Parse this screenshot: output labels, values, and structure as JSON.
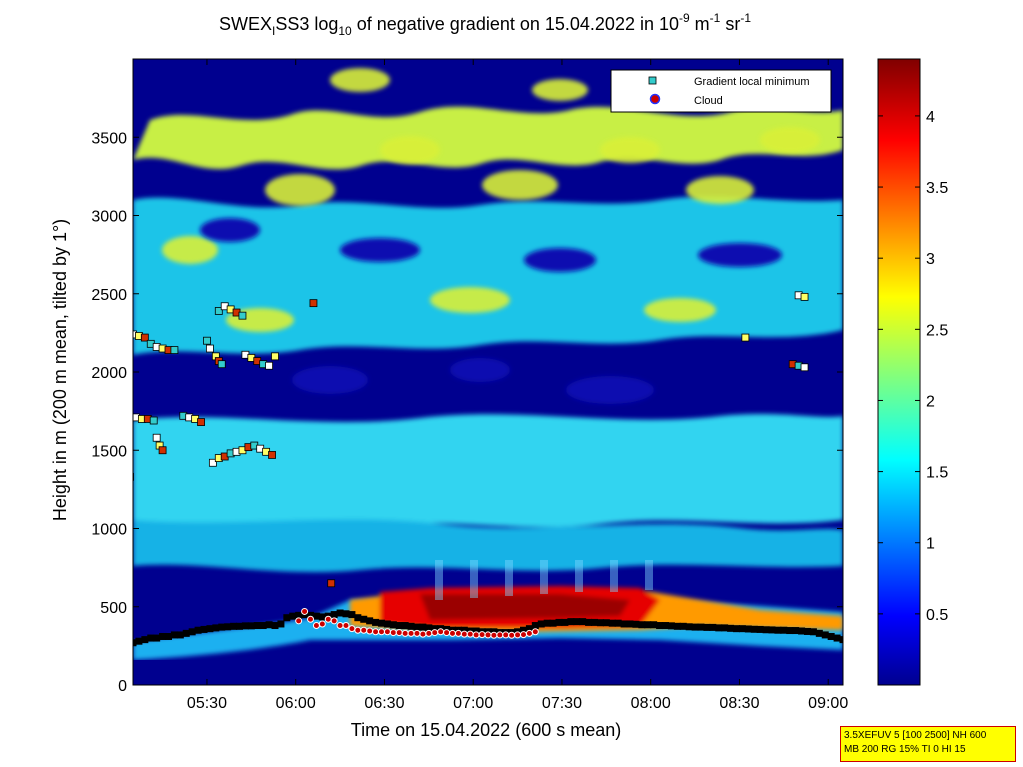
{
  "chart_data": {
    "type": "heatmap",
    "title": {
      "prefix": "SWEX",
      "sub1": "I",
      "mid1": "SS3 log",
      "sub2": "10",
      "mid2": " of negative gradient on 15.04.2022 in 10",
      "sup1": "-9",
      "mid3": " m",
      "sup2": "-1",
      "mid4": " sr",
      "sup3": "-1"
    },
    "xlabel": "Time on 15.04.2022 (600 s mean)",
    "ylabel": "Height in m (200 m mean, tilted by 1°)",
    "x_range_min": [
      305,
      545
    ],
    "y_range": [
      0,
      4000
    ],
    "x_ticks": [
      {
        "label": "05:30",
        "min": 330
      },
      {
        "label": "06:00",
        "min": 360
      },
      {
        "label": "06:30",
        "min": 390
      },
      {
        "label": "07:00",
        "min": 420
      },
      {
        "label": "07:30",
        "min": 450
      },
      {
        "label": "08:00",
        "min": 480
      },
      {
        "label": "08:30",
        "min": 510
      },
      {
        "label": "09:00",
        "min": 540
      }
    ],
    "y_ticks": [
      0,
      500,
      1000,
      1500,
      2000,
      2500,
      3000,
      3500
    ],
    "colorbar": {
      "range": [
        0,
        4.4
      ],
      "ticks": [
        {
          "label": "0.5",
          "value": 0.5
        },
        {
          "label": "1",
          "value": 1
        },
        {
          "label": "1.5",
          "value": 1.5
        },
        {
          "label": "2",
          "value": 2
        },
        {
          "label": "2.5",
          "value": 2.5
        },
        {
          "label": "3",
          "value": 3
        },
        {
          "label": "3.5",
          "value": 3.5
        },
        {
          "label": "4",
          "value": 4
        }
      ]
    },
    "legend": {
      "placement": "top-right",
      "entries": [
        {
          "label": "Gradient local minimum",
          "marker": "square",
          "color": "#33cccc"
        },
        {
          "label": "Cloud",
          "marker": "circle",
          "color": "#cc0000"
        }
      ]
    },
    "gradient_minimum_points": [
      [
        305,
        2240
      ],
      [
        307,
        2230
      ],
      [
        309,
        2220
      ],
      [
        311,
        2180
      ],
      [
        313,
        2160
      ],
      [
        315,
        2150
      ],
      [
        317,
        2140
      ],
      [
        319,
        2140
      ],
      [
        306,
        1710
      ],
      [
        308,
        1700
      ],
      [
        310,
        1700
      ],
      [
        312,
        1690
      ],
      [
        313,
        1580
      ],
      [
        314,
        1530
      ],
      [
        315,
        1500
      ],
      [
        322,
        1720
      ],
      [
        324,
        1710
      ],
      [
        326,
        1700
      ],
      [
        328,
        1680
      ],
      [
        330,
        2200
      ],
      [
        331,
        2150
      ],
      [
        333,
        2100
      ],
      [
        334,
        2070
      ],
      [
        335,
        2050
      ],
      [
        332,
        1420
      ],
      [
        334,
        1450
      ],
      [
        336,
        1460
      ],
      [
        338,
        1480
      ],
      [
        340,
        1490
      ],
      [
        342,
        1500
      ],
      [
        344,
        1520
      ],
      [
        346,
        1530
      ],
      [
        348,
        1510
      ],
      [
        350,
        1490
      ],
      [
        352,
        1470
      ],
      [
        334,
        2390
      ],
      [
        336,
        2420
      ],
      [
        338,
        2400
      ],
      [
        340,
        2380
      ],
      [
        342,
        2360
      ],
      [
        343,
        2110
      ],
      [
        345,
        2090
      ],
      [
        347,
        2070
      ],
      [
        349,
        2050
      ],
      [
        351,
        2040
      ],
      [
        353,
        2100
      ],
      [
        366,
        2440
      ],
      [
        304,
        1330
      ],
      [
        530,
        2490
      ],
      [
        532,
        2480
      ],
      [
        528,
        2050
      ],
      [
        530,
        2040
      ],
      [
        532,
        2030
      ],
      [
        512,
        2220
      ],
      [
        372,
        650
      ]
    ],
    "lower_layer_points": [
      [
        305,
        270
      ],
      [
        307,
        280
      ],
      [
        309,
        290
      ],
      [
        311,
        300
      ],
      [
        313,
        300
      ],
      [
        315,
        310
      ],
      [
        317,
        310
      ],
      [
        319,
        320
      ],
      [
        321,
        320
      ],
      [
        323,
        330
      ],
      [
        325,
        340
      ],
      [
        327,
        350
      ],
      [
        329,
        355
      ],
      [
        331,
        360
      ],
      [
        333,
        365
      ],
      [
        335,
        370
      ],
      [
        337,
        372
      ],
      [
        339,
        375
      ],
      [
        341,
        375
      ],
      [
        343,
        378
      ],
      [
        345,
        378
      ],
      [
        347,
        380
      ],
      [
        349,
        380
      ],
      [
        351,
        385
      ],
      [
        353,
        380
      ],
      [
        355,
        390
      ],
      [
        357,
        430
      ],
      [
        359,
        440
      ],
      [
        361,
        445
      ],
      [
        363,
        450
      ],
      [
        365,
        445
      ],
      [
        367,
        440
      ],
      [
        369,
        435
      ],
      [
        371,
        440
      ],
      [
        373,
        450
      ],
      [
        375,
        460
      ],
      [
        377,
        455
      ],
      [
        379,
        450
      ],
      [
        381,
        430
      ],
      [
        383,
        420
      ],
      [
        385,
        410
      ],
      [
        387,
        400
      ],
      [
        389,
        395
      ],
      [
        391,
        390
      ],
      [
        393,
        385
      ],
      [
        395,
        380
      ],
      [
        397,
        380
      ],
      [
        399,
        375
      ],
      [
        401,
        370
      ],
      [
        403,
        370
      ],
      [
        405,
        365
      ],
      [
        407,
        360
      ],
      [
        409,
        360
      ],
      [
        411,
        355
      ],
      [
        413,
        350
      ],
      [
        415,
        350
      ],
      [
        417,
        350
      ],
      [
        419,
        345
      ],
      [
        421,
        345
      ],
      [
        423,
        340
      ],
      [
        425,
        340
      ],
      [
        427,
        340
      ],
      [
        429,
        335
      ],
      [
        431,
        335
      ],
      [
        433,
        335
      ],
      [
        435,
        340
      ],
      [
        437,
        350
      ],
      [
        439,
        360
      ],
      [
        441,
        380
      ],
      [
        443,
        390
      ],
      [
        445,
        395
      ],
      [
        447,
        395
      ],
      [
        449,
        400
      ],
      [
        451,
        400
      ],
      [
        453,
        405
      ],
      [
        455,
        405
      ],
      [
        457,
        405
      ],
      [
        459,
        400
      ],
      [
        461,
        400
      ],
      [
        463,
        398
      ],
      [
        465,
        398
      ],
      [
        467,
        395
      ],
      [
        469,
        395
      ],
      [
        471,
        390
      ],
      [
        473,
        390
      ],
      [
        475,
        388
      ],
      [
        477,
        385
      ],
      [
        479,
        385
      ],
      [
        481,
        385
      ],
      [
        483,
        380
      ],
      [
        485,
        380
      ],
      [
        487,
        378
      ],
      [
        489,
        375
      ],
      [
        491,
        375
      ],
      [
        493,
        372
      ],
      [
        495,
        370
      ],
      [
        497,
        370
      ],
      [
        499,
        368
      ],
      [
        501,
        368
      ],
      [
        503,
        365
      ],
      [
        505,
        365
      ],
      [
        507,
        362
      ],
      [
        509,
        360
      ],
      [
        511,
        360
      ],
      [
        513,
        358
      ],
      [
        515,
        356
      ],
      [
        517,
        355
      ],
      [
        519,
        353
      ],
      [
        521,
        352
      ],
      [
        523,
        350
      ],
      [
        525,
        350
      ],
      [
        527,
        348
      ],
      [
        529,
        348
      ],
      [
        531,
        345
      ],
      [
        533,
        342
      ],
      [
        535,
        340
      ],
      [
        537,
        330
      ],
      [
        539,
        320
      ],
      [
        541,
        310
      ],
      [
        543,
        300
      ],
      [
        545,
        290
      ]
    ],
    "cloud_points": [
      [
        361,
        410
      ],
      [
        363,
        470
      ],
      [
        365,
        420
      ],
      [
        367,
        380
      ],
      [
        369,
        390
      ],
      [
        371,
        420
      ],
      [
        373,
        410
      ],
      [
        375,
        380
      ],
      [
        377,
        380
      ],
      [
        379,
        360
      ],
      [
        381,
        350
      ],
      [
        383,
        350
      ],
      [
        385,
        345
      ],
      [
        387,
        340
      ],
      [
        389,
        340
      ],
      [
        391,
        340
      ],
      [
        393,
        335
      ],
      [
        395,
        335
      ],
      [
        397,
        330
      ],
      [
        399,
        330
      ],
      [
        401,
        330
      ],
      [
        403,
        325
      ],
      [
        405,
        330
      ],
      [
        407,
        335
      ],
      [
        409,
        340
      ],
      [
        411,
        335
      ],
      [
        413,
        330
      ],
      [
        415,
        330
      ],
      [
        417,
        325
      ],
      [
        419,
        325
      ],
      [
        421,
        320
      ],
      [
        423,
        322
      ],
      [
        425,
        320
      ],
      [
        427,
        318
      ],
      [
        429,
        320
      ],
      [
        431,
        320
      ],
      [
        433,
        318
      ],
      [
        435,
        320
      ],
      [
        437,
        322
      ],
      [
        439,
        330
      ],
      [
        441,
        340
      ]
    ],
    "settings_text": [
      "3.5XEFUV 5 [100 2500] NH 600",
      "MB 200 RG 15% TI 0 HI 15"
    ]
  }
}
